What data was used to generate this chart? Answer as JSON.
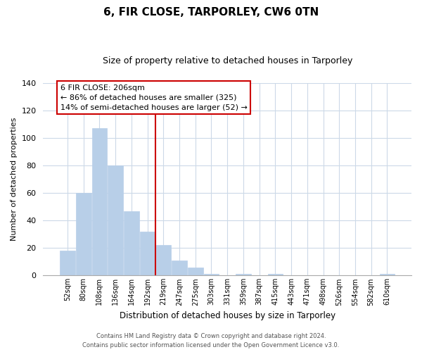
{
  "title": "6, FIR CLOSE, TARPORLEY, CW6 0TN",
  "subtitle": "Size of property relative to detached houses in Tarporley",
  "xlabel": "Distribution of detached houses by size in Tarporley",
  "ylabel": "Number of detached properties",
  "bar_labels": [
    "52sqm",
    "80sqm",
    "108sqm",
    "136sqm",
    "164sqm",
    "192sqm",
    "219sqm",
    "247sqm",
    "275sqm",
    "303sqm",
    "331sqm",
    "359sqm",
    "387sqm",
    "415sqm",
    "443sqm",
    "471sqm",
    "498sqm",
    "526sqm",
    "554sqm",
    "582sqm",
    "610sqm"
  ],
  "bar_values": [
    18,
    60,
    107,
    80,
    47,
    32,
    22,
    11,
    6,
    1,
    0,
    1,
    0,
    1,
    0,
    0,
    0,
    0,
    0,
    0,
    1
  ],
  "bar_color": "#b8cfe8",
  "vline_color": "#cc0000",
  "vline_x": 5.5,
  "ylim": [
    0,
    140
  ],
  "yticks": [
    0,
    20,
    40,
    60,
    80,
    100,
    120,
    140
  ],
  "annotation_title": "6 FIR CLOSE: 206sqm",
  "annotation_line1": "← 86% of detached houses are smaller (325)",
  "annotation_line2": "14% of semi-detached houses are larger (52) →",
  "annotation_box_color": "#ffffff",
  "annotation_box_edge": "#cc0000",
  "footer_line1": "Contains HM Land Registry data © Crown copyright and database right 2024.",
  "footer_line2": "Contains public sector information licensed under the Open Government Licence v3.0.",
  "background_color": "#ffffff",
  "grid_color": "#ccd9e8",
  "title_fontsize": 11,
  "subtitle_fontsize": 9,
  "ylabel_fontsize": 8,
  "xlabel_fontsize": 8.5
}
